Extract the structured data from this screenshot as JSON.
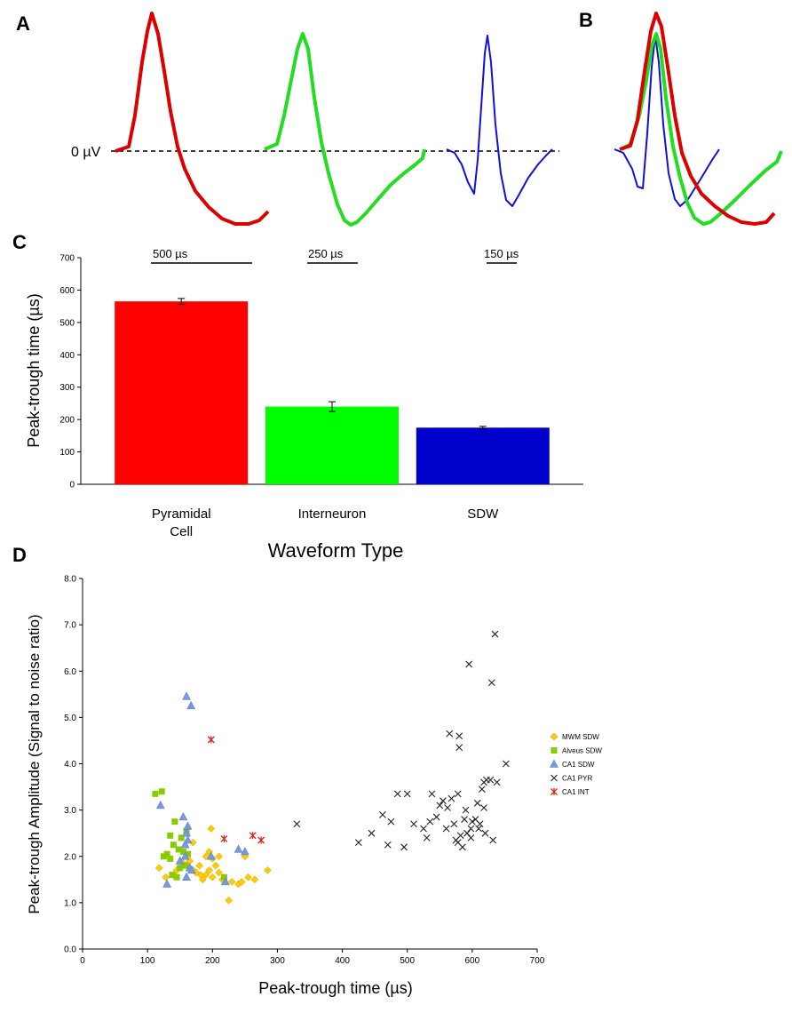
{
  "panels": {
    "a": "A",
    "b": "B",
    "c": "C",
    "d": "D"
  },
  "zero_label": "0 µV",
  "colors": {
    "pyramidal": "#dd0000",
    "interneuron": "#22dd22",
    "sdw": "#1010dd",
    "bar_pyramidal": "#ff0000",
    "bar_interneuron": "#00ff00",
    "bar_sdw": "#0000cc"
  },
  "scale_bars": {
    "pyramidal": "500 µs",
    "interneuron": "250 µs",
    "sdw": "150 µs"
  },
  "chart_data": [
    {
      "type": "bar",
      "panel": "C",
      "categories": [
        "Pyramidal Cell",
        "Interneuron",
        "SDW"
      ],
      "category_lines": [
        [
          "Pyramidal",
          "Cell"
        ],
        [
          "Interneuron"
        ],
        [
          "SDW"
        ]
      ],
      "values": [
        565,
        240,
        175
      ],
      "errors": [
        9,
        15,
        4
      ],
      "ylabel": "Peak-trough time (µs)",
      "xlabel": "Waveform Type",
      "ylim": [
        0,
        700
      ],
      "yticks": [
        0,
        100,
        200,
        300,
        400,
        500,
        600,
        700
      ]
    },
    {
      "type": "scatter",
      "panel": "D",
      "xlabel": "Peak-trough time (µs)",
      "ylabel": "Peak-trough Amplitude (Signal to noise ratio)",
      "xlim": [
        0,
        700
      ],
      "ylim": [
        0,
        8
      ],
      "xticks": [
        0,
        100,
        200,
        300,
        400,
        500,
        600,
        700
      ],
      "yticks": [
        "0.0",
        "1.0",
        "2.0",
        "3.0",
        "4.0",
        "5.0",
        "6.0",
        "7.0",
        "8.0"
      ],
      "legend_position": "right",
      "series": [
        {
          "name": "MWM SDW",
          "marker": "diamond",
          "color": "#ffcc00",
          "points": [
            [
              118,
              1.75
            ],
            [
              128,
              1.55
            ],
            [
              140,
              1.6
            ],
            [
              145,
              1.7
            ],
            [
              150,
              1.75
            ],
            [
              155,
              1.85
            ],
            [
              160,
              1.8
            ],
            [
              165,
              1.9
            ],
            [
              170,
              1.7
            ],
            [
              175,
              1.65
            ],
            [
              180,
              1.8
            ],
            [
              185,
              1.5
            ],
            [
              190,
              1.6
            ],
            [
              195,
              1.7
            ],
            [
              200,
              1.55
            ],
            [
              195,
              2.1
            ],
            [
              200,
              1.95
            ],
            [
              205,
              1.8
            ],
            [
              210,
              1.65
            ],
            [
              215,
              1.5
            ],
            [
              210,
              2.0
            ],
            [
              198,
              2.6
            ],
            [
              225,
              1.05
            ],
            [
              230,
              1.45
            ],
            [
              240,
              1.4
            ],
            [
              245,
              1.45
            ],
            [
              250,
              2.0
            ],
            [
              255,
              1.55
            ],
            [
              265,
              1.5
            ],
            [
              285,
              1.7
            ],
            [
              182,
              1.6
            ],
            [
              190,
              2.0
            ],
            [
              170,
              2.3
            ]
          ]
        },
        {
          "name": "Alveus SDW",
          "marker": "square",
          "color": "#88cc00",
          "points": [
            [
              112,
              3.35
            ],
            [
              122,
              3.4
            ],
            [
              125,
              2.0
            ],
            [
              130,
              2.05
            ],
            [
              135,
              1.95
            ],
            [
              138,
              1.6
            ],
            [
              140,
              2.25
            ],
            [
              142,
              2.75
            ],
            [
              145,
              1.55
            ],
            [
              148,
              2.15
            ],
            [
              150,
              1.75
            ],
            [
              152,
              2.4
            ],
            [
              155,
              2.1
            ],
            [
              158,
              1.8
            ],
            [
              160,
              2.55
            ],
            [
              162,
              2.05
            ],
            [
              218,
              1.55
            ],
            [
              135,
              2.45
            ]
          ]
        },
        {
          "name": "CA1 SDW",
          "marker": "triangle",
          "color": "#7799dd",
          "points": [
            [
              120,
              3.1
            ],
            [
              130,
              1.4
            ],
            [
              150,
              1.9
            ],
            [
              155,
              2.85
            ],
            [
              158,
              2.0
            ],
            [
              160,
              2.5
            ],
            [
              162,
              2.35
            ],
            [
              160,
              1.55
            ],
            [
              162,
              2.65
            ],
            [
              165,
              1.75
            ],
            [
              168,
              1.7
            ],
            [
              160,
              5.45
            ],
            [
              167,
              5.25
            ],
            [
              198,
              2.0
            ],
            [
              220,
              1.45
            ],
            [
              240,
              2.15
            ],
            [
              250,
              2.1
            ],
            [
              158,
              2.25
            ]
          ]
        },
        {
          "name": "CA1 PYR",
          "marker": "x",
          "color": "#222222",
          "points": [
            [
              330,
              2.7
            ],
            [
              425,
              2.3
            ],
            [
              445,
              2.5
            ],
            [
              462,
              2.9
            ],
            [
              470,
              2.25
            ],
            [
              475,
              2.75
            ],
            [
              485,
              3.35
            ],
            [
              495,
              2.2
            ],
            [
              500,
              3.35
            ],
            [
              510,
              2.7
            ],
            [
              525,
              2.6
            ],
            [
              530,
              2.4
            ],
            [
              535,
              2.75
            ],
            [
              538,
              3.35
            ],
            [
              545,
              2.85
            ],
            [
              550,
              3.1
            ],
            [
              555,
              3.2
            ],
            [
              560,
              2.6
            ],
            [
              562,
              3.05
            ],
            [
              565,
              4.65
            ],
            [
              568,
              3.25
            ],
            [
              572,
              2.7
            ],
            [
              575,
              2.35
            ],
            [
              578,
              3.35
            ],
            [
              580,
              4.6
            ],
            [
              580,
              4.35
            ],
            [
              582,
              2.45
            ],
            [
              585,
              2.2
            ],
            [
              588,
              2.8
            ],
            [
              590,
              3.0
            ],
            [
              592,
              2.5
            ],
            [
              595,
              6.15
            ],
            [
              598,
              2.4
            ],
            [
              600,
              2.75
            ],
            [
              605,
              2.8
            ],
            [
              608,
              3.15
            ],
            [
              610,
              2.6
            ],
            [
              612,
              2.7
            ],
            [
              615,
              3.45
            ],
            [
              618,
              3.05
            ],
            [
              618,
              3.6
            ],
            [
              620,
              2.5
            ],
            [
              622,
              3.65
            ],
            [
              628,
              3.65
            ],
            [
              630,
              5.75
            ],
            [
              632,
              2.35
            ],
            [
              635,
              6.8
            ],
            [
              638,
              3.6
            ],
            [
              652,
              4.0
            ],
            [
              598,
              2.6
            ],
            [
              578,
              2.3
            ]
          ]
        },
        {
          "name": "CA1 INT",
          "marker": "asterisk",
          "color": "#dd2222",
          "points": [
            [
              198,
              4.52
            ],
            [
              218,
              2.38
            ],
            [
              262,
              2.45
            ],
            [
              275,
              2.35
            ]
          ]
        }
      ]
    }
  ]
}
